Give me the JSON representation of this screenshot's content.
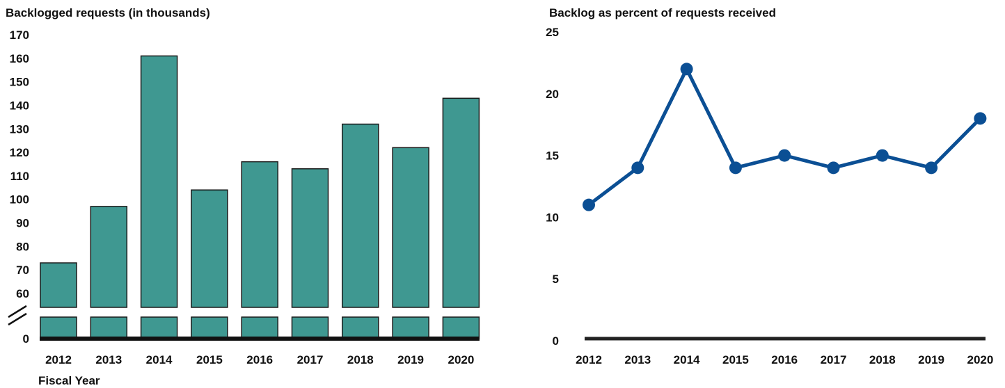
{
  "colors": {
    "bar_fill": "#3f9891",
    "bar_stroke": "#1a1a1a",
    "line": "#0b4f94",
    "axis": "#111111"
  },
  "chart_data": [
    {
      "type": "bar",
      "title": "Backlogged requests (in thousands)",
      "xlabel": "Fiscal Year",
      "ylabel": "",
      "categories": [
        "2012",
        "2013",
        "2014",
        "2015",
        "2016",
        "2017",
        "2018",
        "2019",
        "2020"
      ],
      "values": [
        73,
        97,
        161,
        104,
        116,
        113,
        132,
        122,
        143
      ],
      "y_ticks": [
        "170",
        "160",
        "150",
        "140",
        "130",
        "120",
        "110",
        "100",
        "90",
        "80",
        "70",
        "60",
        "0"
      ],
      "ylim": [
        0,
        170
      ],
      "axis_break": true,
      "grid": false
    },
    {
      "type": "line",
      "title": "Backlog as percent of requests received",
      "xlabel": "",
      "ylabel": "",
      "categories": [
        "2012",
        "2013",
        "2014",
        "2015",
        "2016",
        "2017",
        "2018",
        "2019",
        "2020"
      ],
      "values": [
        11,
        14,
        22,
        14,
        15,
        14,
        15,
        14,
        18
      ],
      "y_ticks": [
        "25",
        "20",
        "15",
        "10",
        "5",
        "0"
      ],
      "ylim": [
        0,
        25
      ],
      "markers": true,
      "grid": false
    }
  ]
}
